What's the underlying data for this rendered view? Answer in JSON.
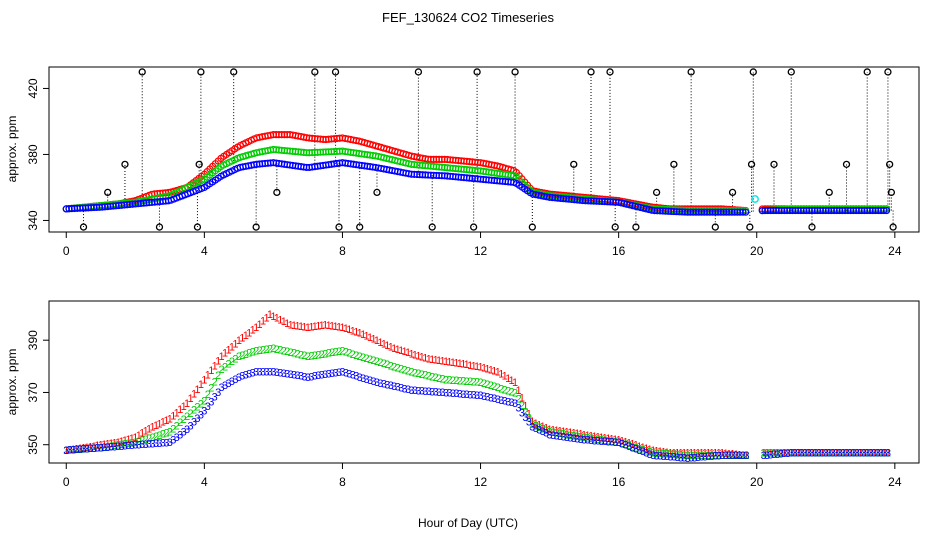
{
  "title": "FEF_130624  CO2 Timeseries",
  "xlabel": "Hour of Day (UTC)",
  "chart_data": [
    {
      "type": "scatter",
      "panel": "top",
      "ylabel": "approx. ppm",
      "xlim": [
        -0.5,
        24.7
      ],
      "ylim": [
        333,
        433
      ],
      "xticks": [
        "0",
        "4",
        "8",
        "12",
        "16",
        "20",
        "24"
      ],
      "yticks": [
        "340",
        "380",
        "420"
      ],
      "colors": {
        "series1": "#ff0000",
        "series2": "#00cc00",
        "series3": "#0000ff",
        "outlier": "#000000",
        "cyan": "#00e5e5"
      },
      "series": [
        {
          "values": [
            [
              0,
              347
            ],
            [
              0.5,
              348
            ],
            [
              1,
              349
            ],
            [
              1.5,
              350
            ],
            [
              2,
              352
            ],
            [
              2.5,
              356
            ],
            [
              3,
              357
            ],
            [
              3.5,
              360
            ],
            [
              4,
              368
            ],
            [
              4.5,
              378
            ],
            [
              5,
              385
            ],
            [
              5.5,
              390
            ],
            [
              6,
              392
            ],
            [
              6.5,
              392
            ],
            [
              7,
              390
            ],
            [
              7.5,
              389
            ],
            [
              8,
              390
            ],
            [
              8.5,
              388
            ],
            [
              9,
              385
            ],
            [
              9.5,
              382
            ],
            [
              10,
              379
            ],
            [
              10.5,
              377
            ],
            [
              11,
              377
            ],
            [
              11.5,
              376
            ],
            [
              12,
              375
            ],
            [
              12.5,
              373
            ],
            [
              13,
              370
            ],
            [
              13.5,
              358
            ],
            [
              14,
              356
            ],
            [
              14.5,
              355
            ],
            [
              15,
              354
            ],
            [
              15.5,
              353
            ],
            [
              16,
              352
            ],
            [
              16.5,
              350
            ],
            [
              17,
              348
            ],
            [
              17.5,
              347
            ],
            [
              18,
              347
            ],
            [
              19,
              347
            ],
            [
              19.7,
              346
            ],
            [
              20.2,
              347
            ],
            [
              21,
              347
            ],
            [
              22,
              347
            ],
            [
              23,
              347
            ],
            [
              23.8,
              347
            ]
          ]
        },
        {
          "values": [
            [
              0,
              347
            ],
            [
              1,
              349
            ],
            [
              2,
              351
            ],
            [
              3,
              355
            ],
            [
              4,
              365
            ],
            [
              4.5,
              373
            ],
            [
              5,
              378
            ],
            [
              5.5,
              381
            ],
            [
              6,
              383
            ],
            [
              7,
              381
            ],
            [
              8,
              382
            ],
            [
              9,
              379
            ],
            [
              10,
              374
            ],
            [
              11,
              372
            ],
            [
              12,
              370
            ],
            [
              13,
              367
            ],
            [
              13.5,
              357
            ],
            [
              14,
              355
            ],
            [
              15,
              353
            ],
            [
              16,
              351
            ],
            [
              17,
              347
            ],
            [
              18,
              346
            ],
            [
              19,
              346
            ],
            [
              19.7,
              346
            ],
            [
              20.2,
              346
            ],
            [
              21,
              347
            ],
            [
              22,
              347
            ],
            [
              23,
              347
            ],
            [
              23.8,
              347
            ]
          ]
        },
        {
          "values": [
            [
              0,
              347
            ],
            [
              1,
              348
            ],
            [
              2,
              350
            ],
            [
              3,
              352
            ],
            [
              4,
              360
            ],
            [
              4.5,
              367
            ],
            [
              5,
              372
            ],
            [
              5.5,
              374
            ],
            [
              6,
              375
            ],
            [
              7,
              372
            ],
            [
              8,
              375
            ],
            [
              9,
              372
            ],
            [
              10,
              368
            ],
            [
              11,
              367
            ],
            [
              12,
              365
            ],
            [
              13,
              363
            ],
            [
              13.5,
              356
            ],
            [
              14,
              354
            ],
            [
              15,
              352
            ],
            [
              16,
              351
            ],
            [
              17,
              346
            ],
            [
              18,
              345
            ],
            [
              19,
              345
            ],
            [
              19.7,
              345
            ],
            [
              20.2,
              346
            ],
            [
              21,
              346
            ],
            [
              22,
              346
            ],
            [
              23,
              346
            ],
            [
              23.8,
              346
            ]
          ]
        }
      ],
      "outliers": [
        [
          0.5,
          336
        ],
        [
          1.2,
          357
        ],
        [
          1.7,
          374
        ],
        [
          2.2,
          430
        ],
        [
          2.7,
          336
        ],
        [
          3.8,
          336
        ],
        [
          3.85,
          374
        ],
        [
          3.9,
          430
        ],
        [
          4.85,
          430
        ],
        [
          5.5,
          336
        ],
        [
          6.1,
          357
        ],
        [
          7.2,
          430
        ],
        [
          7.8,
          430
        ],
        [
          7.9,
          336
        ],
        [
          8.5,
          336
        ],
        [
          9,
          357
        ],
        [
          10.2,
          430
        ],
        [
          10.6,
          336
        ],
        [
          11.8,
          336
        ],
        [
          11.9,
          430
        ],
        [
          13,
          430
        ],
        [
          13.5,
          336
        ],
        [
          14.7,
          374
        ],
        [
          15.2,
          430
        ],
        [
          15.75,
          430
        ],
        [
          15.9,
          336
        ],
        [
          16.5,
          336
        ],
        [
          17.1,
          357
        ],
        [
          17.6,
          374
        ],
        [
          18.1,
          430
        ],
        [
          18.8,
          336
        ],
        [
          19.3,
          357
        ],
        [
          19.8,
          336
        ],
        [
          19.85,
          374
        ],
        [
          19.9,
          430
        ],
        [
          20.5,
          374
        ],
        [
          21,
          430
        ],
        [
          21.6,
          336
        ],
        [
          22.1,
          357
        ],
        [
          22.6,
          374
        ],
        [
          23.2,
          430
        ],
        [
          23.8,
          430
        ],
        [
          23.85,
          374
        ],
        [
          23.9,
          357
        ],
        [
          23.95,
          336
        ]
      ]
    },
    {
      "type": "scatter",
      "panel": "bottom",
      "ylabel": "approx. ppm",
      "xlim": [
        -0.5,
        24.7
      ],
      "ylim": [
        343,
        405
      ],
      "xticks": [
        "0",
        "4",
        "8",
        "12",
        "16",
        "20",
        "24"
      ],
      "yticks": [
        "350",
        "370",
        "390"
      ],
      "series": [
        {
          "marker": "1",
          "color": "#ff0000",
          "values": [
            [
              0,
              348
            ],
            [
              0.5,
              349
            ],
            [
              1,
              350
            ],
            [
              1.5,
              351
            ],
            [
              2,
              353
            ],
            [
              2.5,
              357
            ],
            [
              3,
              360
            ],
            [
              3.5,
              366
            ],
            [
              4,
              375
            ],
            [
              4.5,
              384
            ],
            [
              5,
              390
            ],
            [
              5.5,
              395
            ],
            [
              5.9,
              400
            ],
            [
              6.5,
              396
            ],
            [
              7,
              395
            ],
            [
              7.5,
              396
            ],
            [
              8,
              395
            ],
            [
              8.5,
              393
            ],
            [
              9,
              390
            ],
            [
              9.5,
              387
            ],
            [
              10,
              385
            ],
            [
              10.5,
              383
            ],
            [
              11,
              382
            ],
            [
              11.5,
              381
            ],
            [
              12,
              380
            ],
            [
              12.5,
              378
            ],
            [
              13,
              374
            ],
            [
              13.5,
              359
            ],
            [
              14,
              356
            ],
            [
              14.5,
              355
            ],
            [
              15,
              354
            ],
            [
              15.5,
              353
            ],
            [
              16,
              352
            ],
            [
              16.5,
              350
            ],
            [
              17,
              348
            ],
            [
              17.5,
              347
            ],
            [
              18,
              347
            ],
            [
              19,
              347
            ],
            [
              19.7,
              346
            ],
            [
              20.2,
              347
            ],
            [
              21,
              347
            ],
            [
              22,
              347
            ],
            [
              23,
              347
            ],
            [
              23.8,
              347
            ]
          ]
        },
        {
          "marker": "2",
          "color": "#00cc00",
          "values": [
            [
              0,
              348
            ],
            [
              1,
              349
            ],
            [
              2,
              351
            ],
            [
              3,
              355
            ],
            [
              4,
              367
            ],
            [
              4.5,
              379
            ],
            [
              5,
              384
            ],
            [
              5.5,
              386
            ],
            [
              6,
              387
            ],
            [
              7,
              384
            ],
            [
              8,
              386
            ],
            [
              9,
              382
            ],
            [
              10,
              378
            ],
            [
              11,
              375
            ],
            [
              12,
              374
            ],
            [
              13,
              370
            ],
            [
              13.5,
              358
            ],
            [
              14,
              355
            ],
            [
              15,
              353
            ],
            [
              16,
              351
            ],
            [
              17,
              347
            ],
            [
              18,
              346
            ],
            [
              19,
              346
            ],
            [
              19.7,
              346
            ],
            [
              20.2,
              347
            ],
            [
              21,
              347
            ],
            [
              22,
              347
            ],
            [
              23,
              347
            ],
            [
              23.8,
              347
            ]
          ]
        },
        {
          "marker": "3",
          "color": "#0000ff",
          "values": [
            [
              0,
              348
            ],
            [
              1,
              349
            ],
            [
              2,
              350
            ],
            [
              3,
              351
            ],
            [
              3.5,
              356
            ],
            [
              4,
              363
            ],
            [
              4.5,
              372
            ],
            [
              5,
              376
            ],
            [
              5.5,
              378
            ],
            [
              6,
              378
            ],
            [
              7,
              376
            ],
            [
              8,
              378
            ],
            [
              9,
              374
            ],
            [
              10,
              371
            ],
            [
              11,
              370
            ],
            [
              12,
              369
            ],
            [
              13,
              366
            ],
            [
              13.5,
              357
            ],
            [
              14,
              354
            ],
            [
              15,
              352
            ],
            [
              16,
              351
            ],
            [
              17,
              346
            ],
            [
              18,
              345
            ],
            [
              19,
              346
            ],
            [
              19.7,
              346
            ],
            [
              20.2,
              346
            ],
            [
              21,
              347
            ],
            [
              22,
              347
            ],
            [
              23,
              347
            ],
            [
              23.8,
              347
            ]
          ]
        }
      ]
    }
  ]
}
